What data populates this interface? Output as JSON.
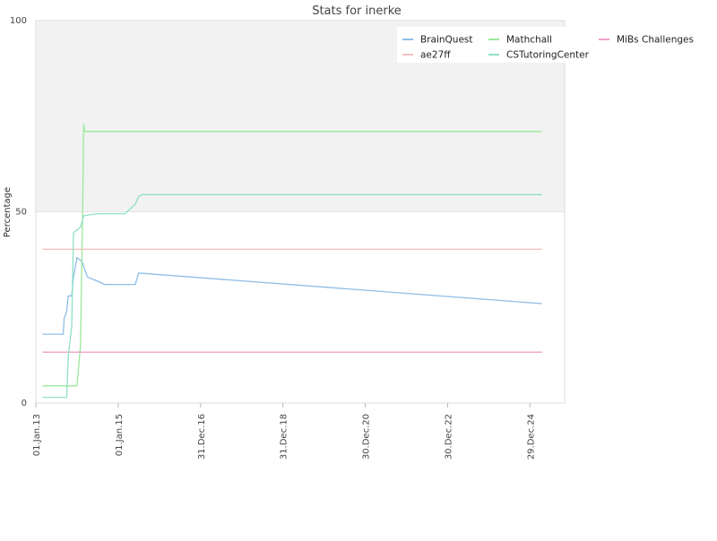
{
  "chart_data": {
    "type": "line",
    "title": "Stats for inerke",
    "xlabel": "",
    "ylabel": "Percentage",
    "ylim": [
      0,
      100
    ],
    "yticks": [
      "0",
      "50",
      "100"
    ],
    "xlim": [
      "2013-01-01",
      "2025-11-01"
    ],
    "xticks": [
      {
        "date": "2013-01-01",
        "label": "01.Jan.13"
      },
      {
        "date": "2015-01-01",
        "label": "01.Jan.15"
      },
      {
        "date": "2016-12-31",
        "label": "31.Dec.16"
      },
      {
        "date": "2018-12-31",
        "label": "31.Dec.18"
      },
      {
        "date": "2020-12-30",
        "label": "30.Dec.20"
      },
      {
        "date": "2022-12-30",
        "label": "30.Dec.22"
      },
      {
        "date": "2024-12-29",
        "label": "29.Dec.24"
      }
    ],
    "upper_band": {
      "from": 50,
      "to": 100,
      "color": "#f2f2f2"
    },
    "legend_position": "top-right",
    "series": [
      {
        "name": "BrainQuest",
        "color": "#8fbde6",
        "points": [
          [
            "2013-03-01",
            18
          ],
          [
            "2013-09-01",
            18
          ],
          [
            "2013-09-08",
            22
          ],
          [
            "2013-10-01",
            24
          ],
          [
            "2013-10-15",
            28
          ],
          [
            "2013-11-15",
            28
          ],
          [
            "2013-12-01",
            33
          ],
          [
            "2014-01-01",
            38
          ],
          [
            "2014-02-15",
            37
          ],
          [
            "2014-04-01",
            33
          ],
          [
            "2014-08-01",
            31.5
          ],
          [
            "2014-09-01",
            31
          ],
          [
            "2015-06-01",
            31
          ],
          [
            "2015-07-01",
            34
          ],
          [
            "2025-04-15",
            26
          ]
        ]
      },
      {
        "name": "Mathchall",
        "color": "#9be89b",
        "points": [
          [
            "2013-03-01",
            4.5
          ],
          [
            "2014-01-01",
            4.5
          ],
          [
            "2014-02-01",
            15
          ],
          [
            "2014-02-20",
            50
          ],
          [
            "2014-03-01",
            73
          ],
          [
            "2014-03-10",
            71
          ],
          [
            "2025-04-15",
            71
          ]
        ]
      },
      {
        "name": "MiBs Challenges",
        "color": "#f0a0c8",
        "points": [
          [
            "2013-03-01",
            13.3
          ],
          [
            "2025-04-15",
            13.3
          ]
        ]
      },
      {
        "name": "ae27ff",
        "color": "#f5c0c0",
        "points": [
          [
            "2013-03-01",
            40.2
          ],
          [
            "2025-04-15",
            40.2
          ]
        ]
      },
      {
        "name": "CSTutoringCenter",
        "color": "#8fe0c8",
        "points": [
          [
            "2013-03-01",
            1.5
          ],
          [
            "2013-10-01",
            1.5
          ],
          [
            "2013-10-15",
            12
          ],
          [
            "2013-11-15",
            20
          ],
          [
            "2013-12-01",
            44.5
          ],
          [
            "2014-02-01",
            46
          ],
          [
            "2014-03-01",
            49
          ],
          [
            "2014-07-01",
            49.5
          ],
          [
            "2015-03-01",
            49.5
          ],
          [
            "2015-06-01",
            52
          ],
          [
            "2015-07-01",
            54
          ],
          [
            "2015-08-01",
            54.5
          ],
          [
            "2025-04-15",
            54.5
          ]
        ]
      }
    ]
  }
}
